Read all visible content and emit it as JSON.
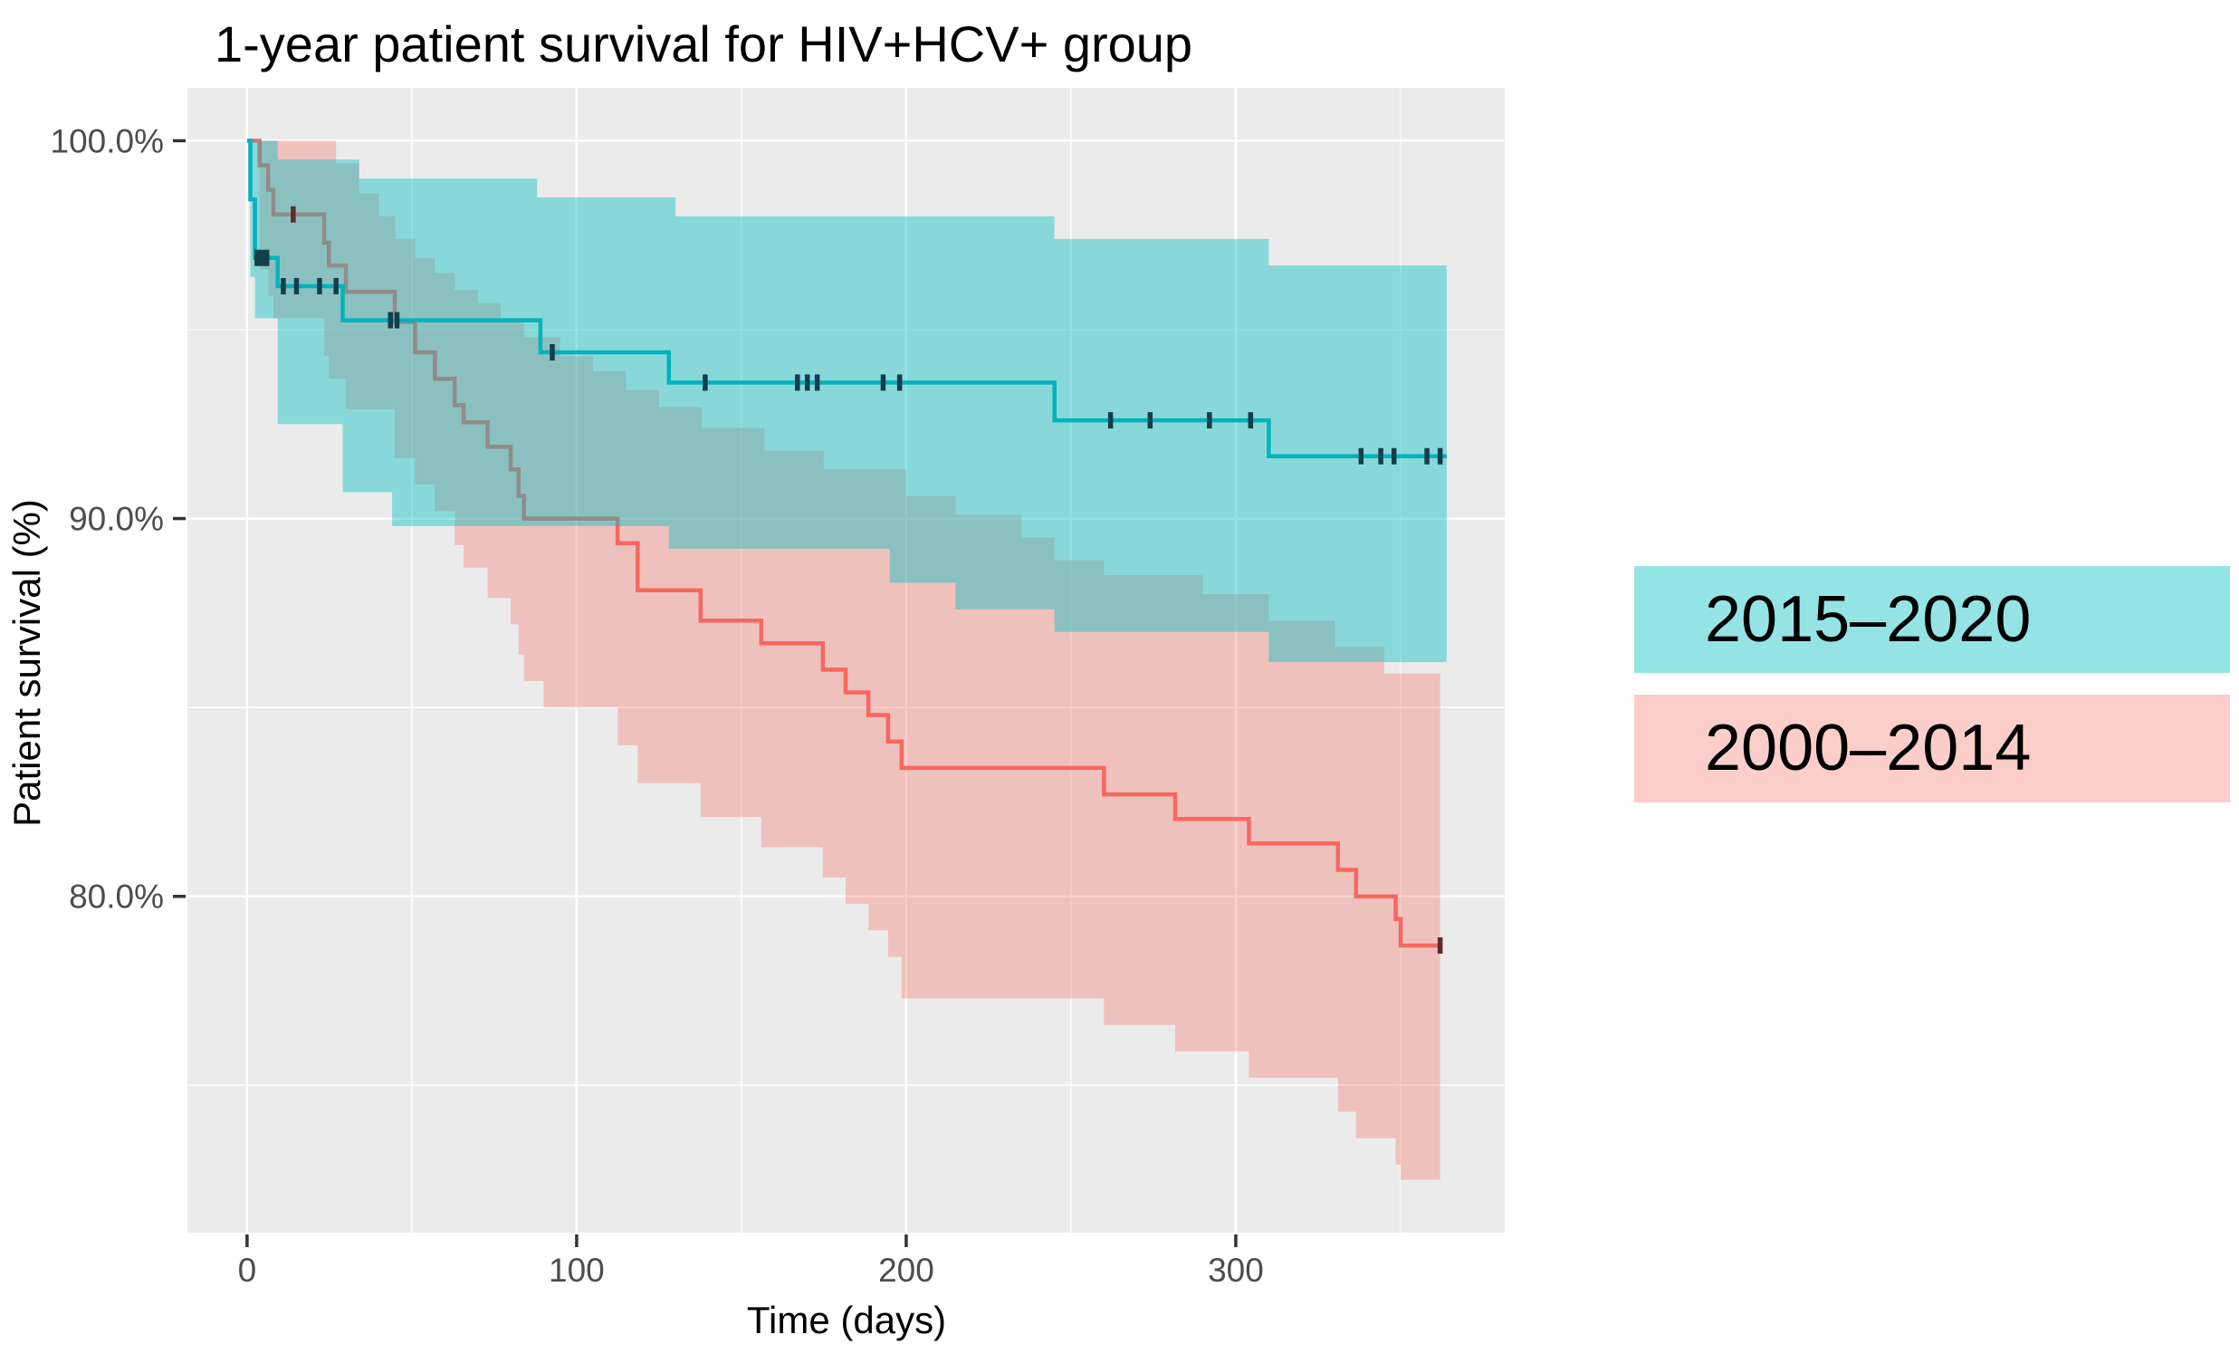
{
  "chart_data": {
    "type": "line",
    "subtype": "kaplan-meier-survival-step",
    "title": "1-year patient survival for HIV+HCV+ group",
    "xlabel": "Time (days)",
    "ylabel": "Patient survival (%)",
    "xlim": [
      -18.1,
      381.6
    ],
    "ylim": [
      71.1,
      101.4
    ],
    "grid": true,
    "legend_position": "right",
    "panel_background": "#ebebeb",
    "gridline_color": "#ffffff",
    "tick_mark_color": "#333333",
    "tick_label_color": "#4d4d4d",
    "x_major_ticks": [
      {
        "value": 0,
        "label": "0"
      },
      {
        "value": 100,
        "label": "100"
      },
      {
        "value": 200,
        "label": "200"
      },
      {
        "value": 300,
        "label": "300"
      }
    ],
    "x_minor_gridlines": [
      50,
      150,
      250,
      350
    ],
    "y_major_ticks": [
      {
        "value": 100,
        "label": "100.0%"
      },
      {
        "value": 90,
        "label": "90.0%"
      },
      {
        "value": 80,
        "label": "80.0%"
      }
    ],
    "y_minor_gridlines": [
      95,
      85,
      75
    ],
    "series": [
      {
        "name": "2015–2020",
        "key": "2015-2020",
        "z": 2,
        "line_color": "#00b3bc",
        "fill_color": "rgba(0,191,196,0.42)",
        "censor_color": "#133e4a",
        "steps": [
          [
            0,
            100
          ],
          [
            1,
            98.45
          ],
          [
            2.4,
            96.9
          ],
          [
            9.3,
            96.15
          ],
          [
            29,
            95.25
          ],
          [
            89,
            94.4
          ],
          [
            128,
            93.6
          ],
          [
            245,
            92.6
          ],
          [
            310,
            91.65
          ],
          [
            364,
            91.65
          ]
        ],
        "censors": [
          [
            3,
            96.9
          ],
          [
            4.5,
            96.9
          ],
          [
            6,
            96.9
          ],
          [
            11,
            96.15
          ],
          [
            15,
            96.15
          ],
          [
            22,
            96.15
          ],
          [
            27,
            96.15
          ],
          [
            43.5,
            95.25
          ],
          [
            45.5,
            95.25
          ],
          [
            92.6,
            94.4
          ],
          [
            139,
            93.6
          ],
          [
            167,
            93.6
          ],
          [
            170,
            93.6
          ],
          [
            173,
            93.6
          ],
          [
            193,
            93.6
          ],
          [
            198,
            93.6
          ],
          [
            262,
            92.6
          ],
          [
            274,
            92.6
          ],
          [
            292,
            92.6
          ],
          [
            304.5,
            92.6
          ],
          [
            338,
            91.65
          ],
          [
            344,
            91.65
          ],
          [
            348,
            91.65
          ],
          [
            358,
            91.65
          ],
          [
            362,
            91.65
          ]
        ],
        "ci_upper": [
          [
            0,
            100
          ],
          [
            9.3,
            99.5
          ],
          [
            34,
            99.0
          ],
          [
            88,
            98.5
          ],
          [
            130,
            98.0
          ],
          [
            245,
            97.4
          ],
          [
            310,
            96.7
          ],
          [
            364,
            96.7
          ]
        ],
        "ci_lower": [
          [
            0,
            100
          ],
          [
            1,
            96.4
          ],
          [
            2.4,
            95.3
          ],
          [
            9.3,
            92.5
          ],
          [
            29,
            90.7
          ],
          [
            44,
            89.8
          ],
          [
            128,
            89.2
          ],
          [
            195,
            88.3
          ],
          [
            215,
            87.6
          ],
          [
            245,
            87.0
          ],
          [
            310,
            86.2
          ],
          [
            364,
            86.2
          ]
        ]
      },
      {
        "name": "2000–2014",
        "key": "2000-2014",
        "z": 1,
        "line_color": "#f8685e",
        "fill_color": "rgba(248,118,109,0.36)",
        "censor_color": "#5c2b28",
        "steps": [
          [
            0,
            100
          ],
          [
            3.8,
            99.35
          ],
          [
            6.4,
            98.7
          ],
          [
            8,
            98.05
          ],
          [
            23.4,
            97.3
          ],
          [
            24.8,
            96.7
          ],
          [
            30,
            96.0
          ],
          [
            44.8,
            95.2
          ],
          [
            51,
            94.4
          ],
          [
            57,
            93.7
          ],
          [
            63,
            93.0
          ],
          [
            65.7,
            92.55
          ],
          [
            73,
            91.9
          ],
          [
            80,
            91.3
          ],
          [
            82.4,
            90.6
          ],
          [
            84,
            90.0
          ],
          [
            112.4,
            89.35
          ],
          [
            118.5,
            88.1
          ],
          [
            137.6,
            87.3
          ],
          [
            156,
            86.7
          ],
          [
            174.7,
            86.0
          ],
          [
            181.6,
            85.4
          ],
          [
            188.5,
            84.8
          ],
          [
            194.5,
            84.1
          ],
          [
            198.6,
            83.4
          ],
          [
            260,
            82.7
          ],
          [
            281.6,
            82.05
          ],
          [
            304,
            81.4
          ],
          [
            331,
            80.7
          ],
          [
            336.5,
            80.0
          ],
          [
            348.5,
            79.4
          ],
          [
            350,
            78.7
          ],
          [
            362,
            78.7
          ]
        ],
        "censors": [
          [
            14,
            98.05
          ],
          [
            362,
            78.7
          ]
        ],
        "ci_upper": [
          [
            0,
            100
          ],
          [
            27,
            99.4
          ],
          [
            34,
            98.6
          ],
          [
            40,
            98.0
          ],
          [
            45,
            97.4
          ],
          [
            51,
            96.9
          ],
          [
            57,
            96.5
          ],
          [
            63,
            96.05
          ],
          [
            70,
            95.7
          ],
          [
            77,
            95.25
          ],
          [
            84,
            94.8
          ],
          [
            95,
            94.3
          ],
          [
            105,
            93.9
          ],
          [
            115,
            93.4
          ],
          [
            125,
            92.95
          ],
          [
            138,
            92.4
          ],
          [
            157,
            91.8
          ],
          [
            175,
            91.3
          ],
          [
            200,
            90.6
          ],
          [
            215,
            90.1
          ],
          [
            235,
            89.5
          ],
          [
            245,
            88.9
          ],
          [
            260,
            88.5
          ],
          [
            290,
            88.0
          ],
          [
            310,
            87.3
          ],
          [
            330,
            86.6
          ],
          [
            345,
            85.9
          ],
          [
            362,
            85.9
          ]
        ],
        "ci_lower": [
          [
            0,
            100
          ],
          [
            3.8,
            96.6
          ],
          [
            6.4,
            95.9
          ],
          [
            8,
            95.3
          ],
          [
            23.4,
            94.3
          ],
          [
            24.8,
            93.7
          ],
          [
            30,
            92.9
          ],
          [
            44.8,
            91.6
          ],
          [
            51,
            90.9
          ],
          [
            57,
            90.2
          ],
          [
            63,
            89.3
          ],
          [
            65.7,
            88.7
          ],
          [
            73,
            87.9
          ],
          [
            80,
            87.2
          ],
          [
            82.4,
            86.4
          ],
          [
            84,
            85.7
          ],
          [
            90,
            85.0
          ],
          [
            112.4,
            84.0
          ],
          [
            118.5,
            83.0
          ],
          [
            137.6,
            82.1
          ],
          [
            156,
            81.3
          ],
          [
            174.7,
            80.5
          ],
          [
            181.6,
            79.8
          ],
          [
            188.5,
            79.1
          ],
          [
            194.5,
            78.4
          ],
          [
            198.6,
            77.3
          ],
          [
            260,
            76.6
          ],
          [
            281.6,
            75.9
          ],
          [
            304,
            75.2
          ],
          [
            331,
            74.3
          ],
          [
            336.5,
            73.6
          ],
          [
            348.5,
            72.9
          ],
          [
            350,
            72.5
          ],
          [
            362,
            72.5
          ]
        ]
      }
    ]
  }
}
